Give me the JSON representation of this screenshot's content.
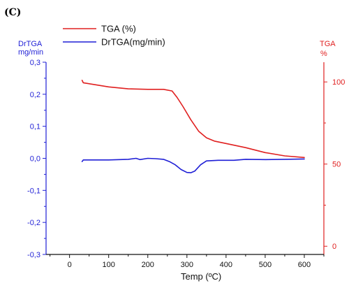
{
  "panel_label": "(C)",
  "legend": {
    "tga": "TGA (%)",
    "drtga": "DrTGA(mg/min)"
  },
  "axes": {
    "left_label_line1": "DrTGA",
    "left_label_line2": "mg/min",
    "right_label_line1": "TGA",
    "right_label_line2": "%",
    "x_label": "Temp (ºC)"
  },
  "colors": {
    "tga": "#e02020",
    "drtga": "#1f1fd6",
    "axis": "#111111"
  },
  "chart_data": {
    "type": "line",
    "title": "",
    "xlabel": "Temp (ºC)",
    "ylabel_left": "DrTGA mg/min",
    "ylabel_right": "TGA %",
    "xlim": [
      -60,
      650
    ],
    "ylim_left": [
      -0.3,
      0.3
    ],
    "ylim_right": [
      -5,
      112
    ],
    "grid": false,
    "legend_position": "top-left",
    "x_ticks": [
      0,
      100,
      200,
      300,
      400,
      500,
      600
    ],
    "x_tick_labels": [
      "0",
      "100",
      "200",
      "300",
      "400",
      "500",
      "600"
    ],
    "y_left_ticks": [
      -0.3,
      -0.2,
      -0.1,
      0.0,
      0.1,
      0.2,
      0.3
    ],
    "y_left_tick_labels": [
      "-0,3",
      "-0,2",
      "-0,1",
      "0,0",
      "0,1",
      "0,2",
      "0,3"
    ],
    "y_right_ticks": [
      0,
      50,
      100
    ],
    "y_right_tick_labels": [
      "0",
      "50",
      "100"
    ],
    "series": [
      {
        "name": "TGA (%)",
        "axis": "right",
        "x": [
          32,
          35,
          60,
          100,
          150,
          200,
          240,
          262,
          275,
          290,
          310,
          330,
          350,
          370,
          400,
          450,
          500,
          550,
          600
        ],
        "y": [
          101,
          99.5,
          98.5,
          97,
          95.8,
          95.5,
          95.5,
          94.5,
          90.5,
          85,
          77,
          70,
          66,
          64,
          62.5,
          60,
          57,
          55,
          54
        ]
      },
      {
        "name": "DrTGA(mg/min)",
        "axis": "left",
        "x": [
          32,
          35,
          60,
          100,
          150,
          170,
          180,
          200,
          220,
          240,
          255,
          270,
          285,
          300,
          310,
          320,
          335,
          350,
          380,
          420,
          450,
          500,
          550,
          600
        ],
        "y": [
          -0.01,
          -0.005,
          -0.005,
          -0.005,
          -0.003,
          0.0,
          -0.004,
          0.0,
          -0.001,
          -0.003,
          -0.01,
          -0.02,
          -0.035,
          -0.044,
          -0.045,
          -0.04,
          -0.02,
          -0.008,
          -0.006,
          -0.006,
          -0.003,
          -0.004,
          -0.003,
          -0.002
        ]
      }
    ]
  }
}
